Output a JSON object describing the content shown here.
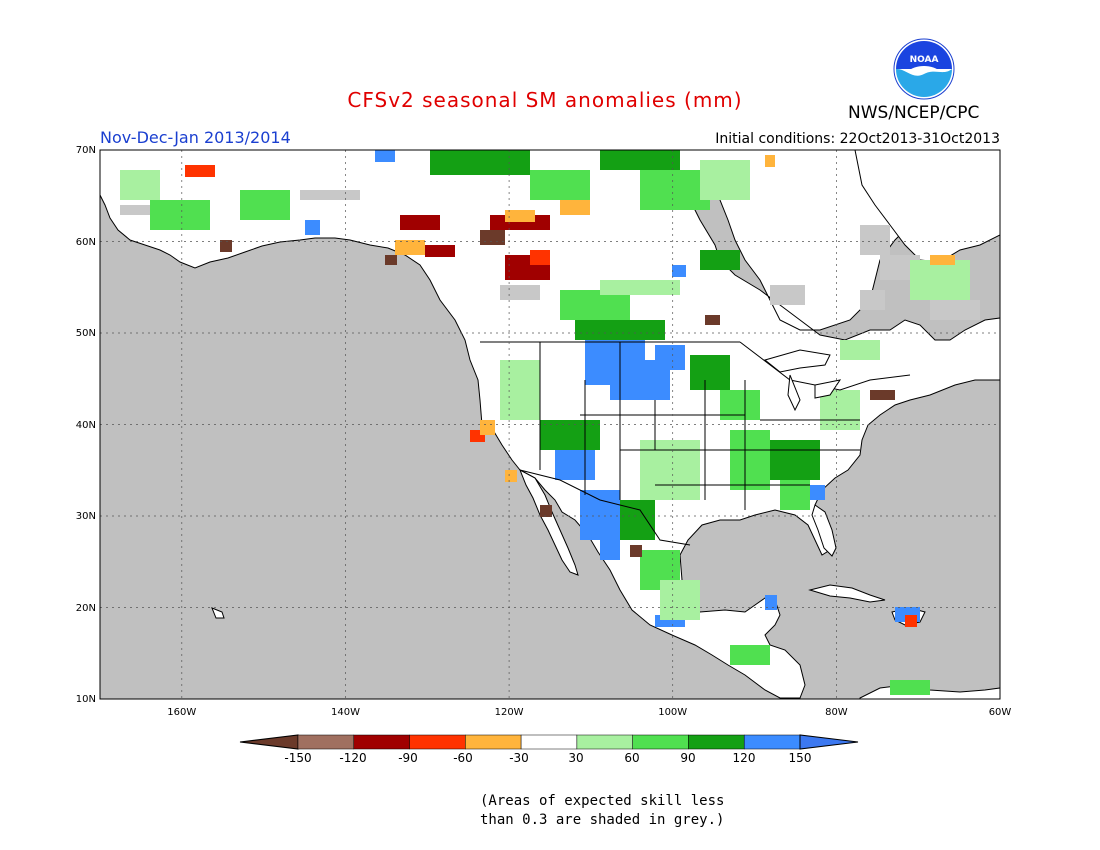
{
  "header": {
    "title": "CFSv2 seasonal SM anomalies (mm)",
    "agency": "NWS/NCEP/CPC",
    "period": "Nov-Dec-Jan 2013/2014",
    "initial_conditions": "Initial conditions: 22Oct2013-31Oct2013"
  },
  "logo": {
    "text": "NOAA",
    "icon": "noaa-logo-icon"
  },
  "map": {
    "extent": {
      "lon_min": -172,
      "lon_max": -60,
      "lat_min": 10,
      "lat_max": 70
    },
    "lat_labels": [
      "70N",
      "60N",
      "50N",
      "40N",
      "30N",
      "20N",
      "10N"
    ],
    "lon_labels": [
      "160W",
      "140W",
      "120W",
      "100W",
      "80W",
      "60W"
    ],
    "colors": {
      "ocean": "#c0c0c0",
      "land": "#ffffff",
      "grey_skill": "#c0c0c0"
    }
  },
  "legend": {
    "labels": [
      "-150",
      "-120",
      "-90",
      "-60",
      "-30",
      "30",
      "60",
      "90",
      "120",
      "150"
    ],
    "colors": [
      "#6b3a2a",
      "#a07060",
      "#a00000",
      "#ff3300",
      "#ffb43c",
      "#ffffff",
      "#a8f0a0",
      "#50e050",
      "#14a014",
      "#3c8cff",
      "#3c78f0"
    ]
  },
  "note": {
    "line1": "(Areas of expected skill less",
    "line2": "than 0.3 are shaded in grey.)"
  }
}
